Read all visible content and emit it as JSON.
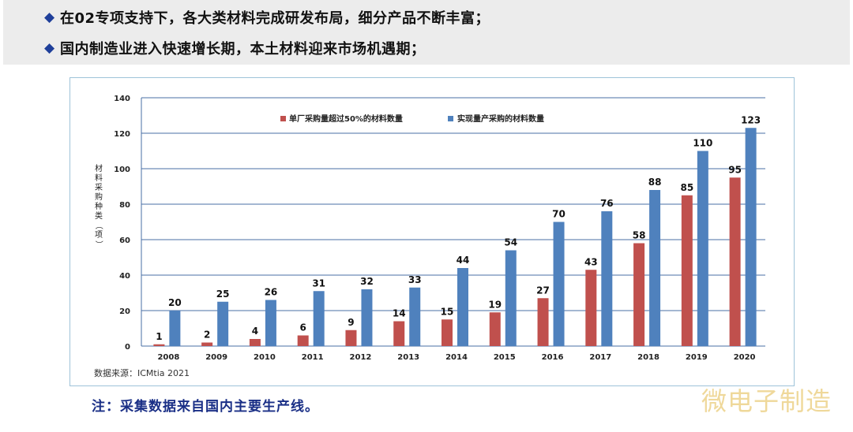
{
  "bullets": [
    {
      "icon": "diamond-icon",
      "text": "在02专项支持下，各大类材料完成研发布局，细分产品不断丰富；"
    },
    {
      "icon": "diamond-icon",
      "text": "国内制造业进入快速增长期，本土材料迎来市场机遇期；"
    }
  ],
  "note": "注：采集数据来自国内主要生产线。",
  "watermark": "微电子制造",
  "chart_data": {
    "type": "bar",
    "categories": [
      "2008",
      "2009",
      "2010",
      "2011",
      "2012",
      "2013",
      "2014",
      "2015",
      "2016",
      "2017",
      "2018",
      "2019",
      "2020"
    ],
    "series": [
      {
        "name": "单厂采购量超过50%的材料数量",
        "color": "#c0504d",
        "values": [
          1,
          2,
          4,
          6,
          9,
          14,
          15,
          19,
          27,
          43,
          58,
          85,
          95
        ]
      },
      {
        "name": "实现量产采购的材料数量",
        "color": "#4f81bd",
        "values": [
          20,
          25,
          26,
          31,
          32,
          33,
          44,
          54,
          70,
          76,
          88,
          110,
          123
        ]
      }
    ],
    "ylabel": "材料采购种类（项）",
    "ylim": [
      0,
      140
    ],
    "yticks": [
      0,
      20,
      40,
      60,
      80,
      100,
      120,
      140
    ],
    "grid": true,
    "legend": "top",
    "source": "数据来源：ICMtia 2021"
  }
}
